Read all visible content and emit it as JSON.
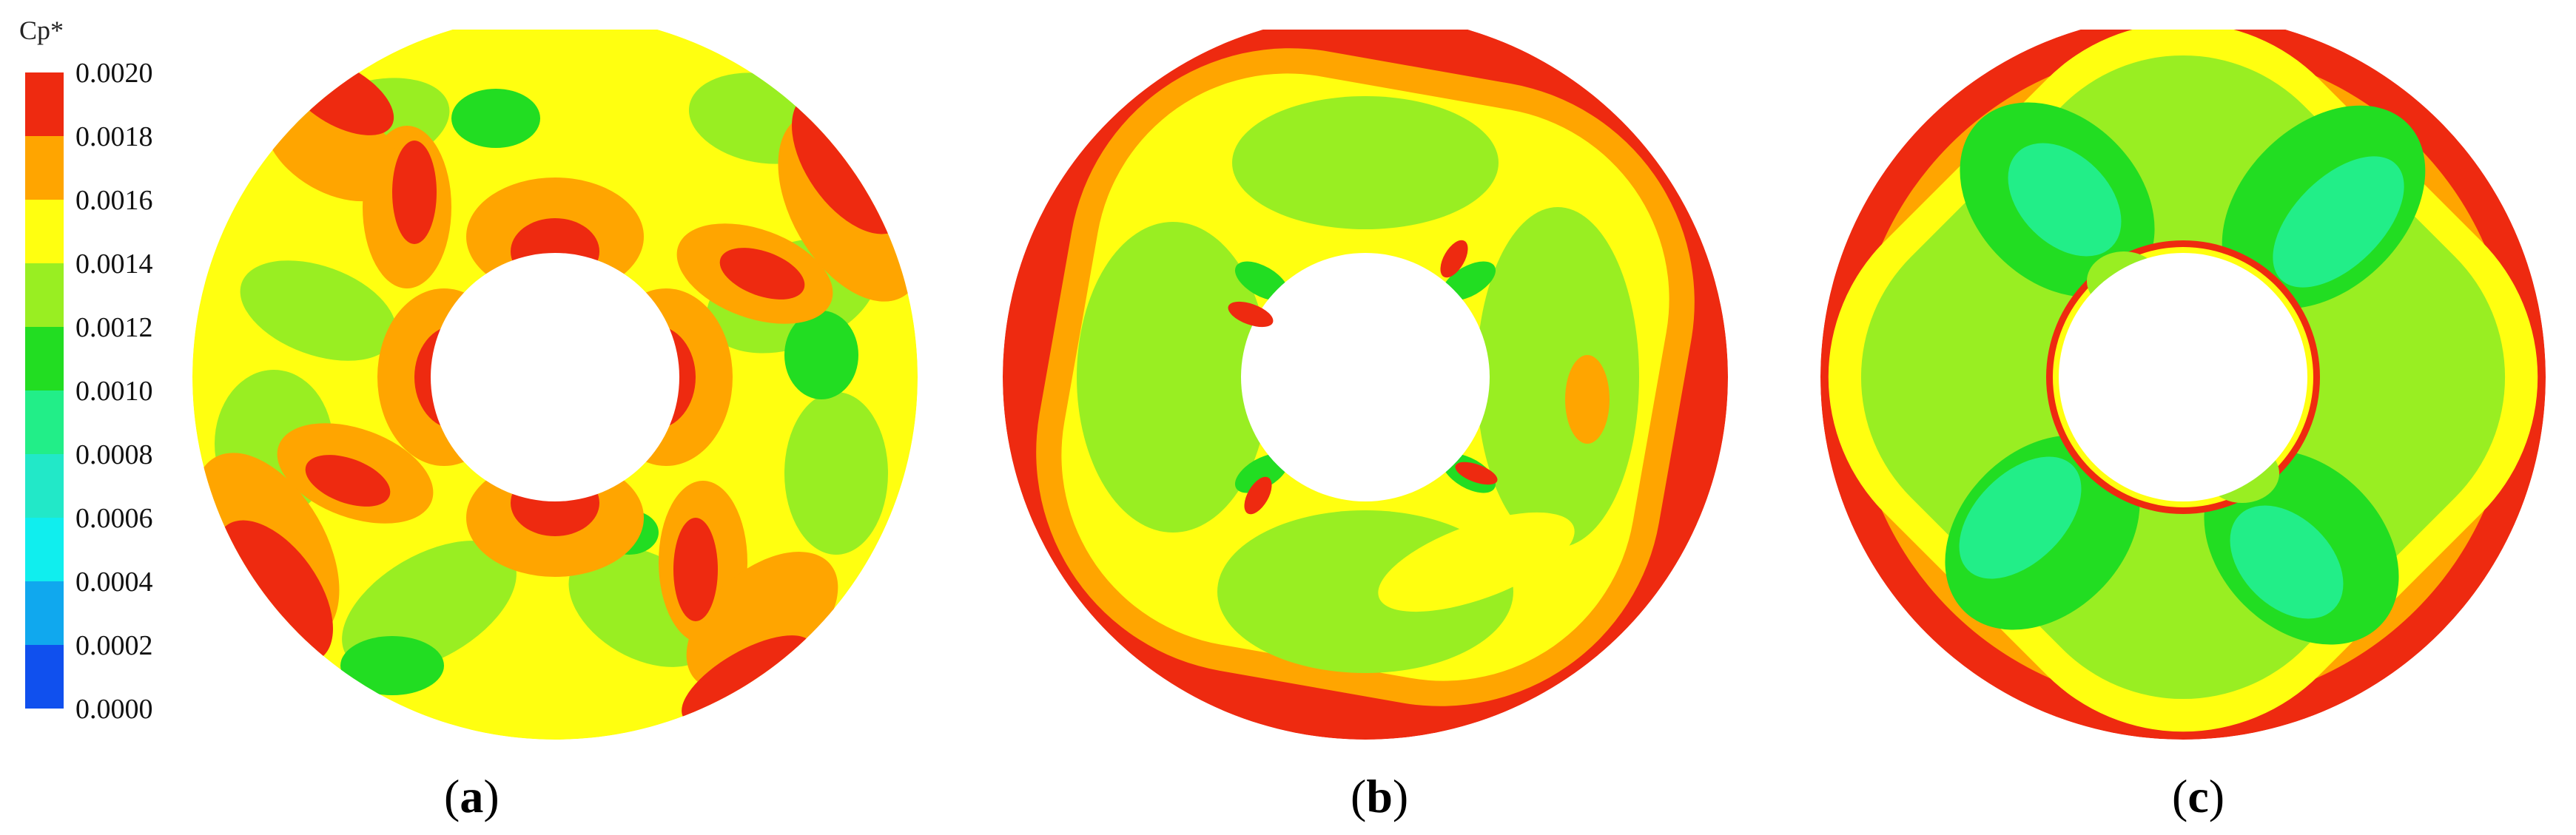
{
  "chart_data": {
    "type": "heatmap",
    "colorbar": {
      "title": "Cp*",
      "ticks": [
        "0.0020",
        "0.0018",
        "0.0016",
        "0.0014",
        "0.0012",
        "0.0010",
        "0.0008",
        "0.0006",
        "0.0004",
        "0.0002",
        "0.0000"
      ],
      "range": [
        0.0,
        0.002
      ],
      "levels": [
        {
          "from": 0.0018,
          "to": 0.002,
          "color": "#ee2a10"
        },
        {
          "from": 0.0016,
          "to": 0.0018,
          "color": "#ffa500"
        },
        {
          "from": 0.0014,
          "to": 0.0016,
          "color": "#ffff10"
        },
        {
          "from": 0.0012,
          "to": 0.0014,
          "color": "#99ee22"
        },
        {
          "from": 0.001,
          "to": 0.0012,
          "color": "#22dd22"
        },
        {
          "from": 0.0008,
          "to": 0.001,
          "color": "#22ee88"
        },
        {
          "from": 0.0006,
          "to": 0.0008,
          "color": "#22e8c8"
        },
        {
          "from": 0.0004,
          "to": 0.0006,
          "color": "#10eeee"
        },
        {
          "from": 0.0002,
          "to": 0.0004,
          "color": "#10a8ee"
        },
        {
          "from": 0.0,
          "to": 0.0002,
          "color": "#1050ee"
        }
      ]
    },
    "panels": [
      {
        "label": "a",
        "pattern": "patchy",
        "dominant_levels": [
          "0.0018-0.0020",
          "0.0016-0.0018",
          "0.0014-0.0016",
          "0.0012-0.0014"
        ]
      },
      {
        "label": "b",
        "pattern": "outer-high-ring",
        "dominant_levels": [
          "0.0018-0.0020",
          "0.0016-0.0018",
          "0.0014-0.0016",
          "0.0012-0.0014"
        ]
      },
      {
        "label": "c",
        "pattern": "four-lobe-low",
        "dominant_levels": [
          "0.0018-0.0020",
          "0.0016-0.0018",
          "0.0014-0.0016",
          "0.0012-0.0014",
          "0.0010-0.0012",
          "0.0008-0.0010"
        ]
      }
    ]
  },
  "colors": {
    "red": "#ee2a10",
    "orange": "#ffa500",
    "yellow": "#ffff10",
    "lime": "#99ee22",
    "green": "#22dd22",
    "teal": "#22ee88"
  }
}
